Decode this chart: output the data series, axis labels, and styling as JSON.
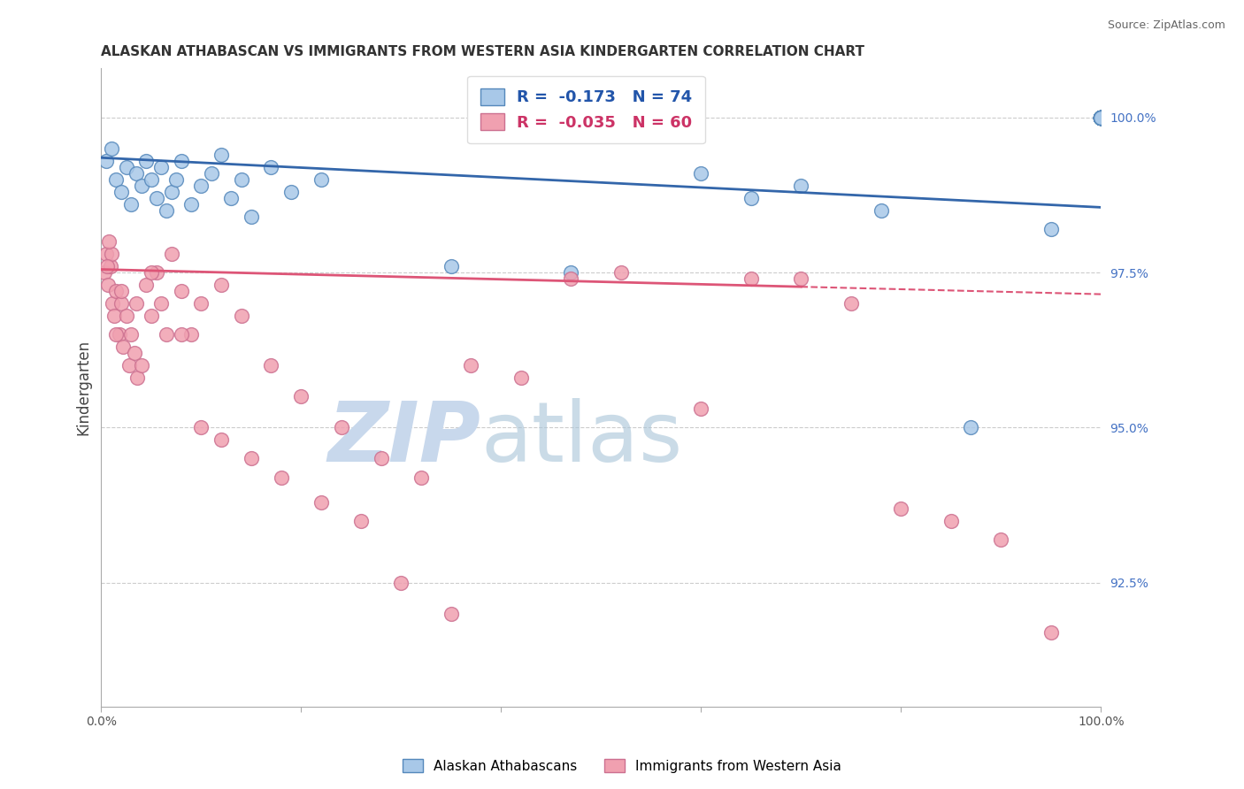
{
  "title": "ALASKAN ATHABASCAN VS IMMIGRANTS FROM WESTERN ASIA KINDERGARTEN CORRELATION CHART",
  "source": "Source: ZipAtlas.com",
  "ylabel": "Kindergarten",
  "xmin": 0.0,
  "xmax": 100.0,
  "ymin": 90.5,
  "ymax": 100.8,
  "blue_R": -0.173,
  "blue_N": 74,
  "pink_R": -0.035,
  "pink_N": 60,
  "legend_label_blue": "Alaskan Athabascans",
  "legend_label_pink": "Immigrants from Western Asia",
  "blue_dot_color": "#a8c8e8",
  "blue_dot_edge": "#5588bb",
  "pink_dot_color": "#f0a0b0",
  "pink_dot_edge": "#cc7090",
  "blue_line_color": "#3366aa",
  "pink_line_color": "#dd5577",
  "ytick_vals": [
    92.5,
    95.0,
    97.5,
    100.0
  ],
  "ytick_labels": [
    "92.5%",
    "95.0%",
    "97.5%",
    "100.0%"
  ],
  "blue_line_y0": 99.35,
  "blue_line_y1": 98.55,
  "pink_line_y0": 97.55,
  "pink_line_y1": 97.15,
  "pink_solid_end": 70.0,
  "blue_dots_x": [
    0.5,
    1.0,
    1.5,
    2.0,
    2.5,
    3.0,
    3.5,
    4.0,
    4.5,
    5.0,
    5.5,
    6.0,
    6.5,
    7.0,
    7.5,
    8.0,
    9.0,
    10.0,
    11.0,
    12.0,
    13.0,
    14.0,
    15.0,
    17.0,
    19.0,
    22.0,
    35.0,
    47.0,
    60.0,
    65.0,
    70.0,
    78.0,
    87.0,
    95.0,
    100.0,
    100.0,
    100.0,
    100.0,
    100.0,
    100.0,
    100.0,
    100.0,
    100.0,
    100.0,
    100.0,
    100.0,
    100.0,
    100.0,
    100.0,
    100.0,
    100.0,
    100.0,
    100.0,
    100.0,
    100.0,
    100.0,
    100.0,
    100.0,
    100.0,
    100.0,
    100.0,
    100.0,
    100.0,
    100.0,
    100.0,
    100.0,
    100.0,
    100.0,
    100.0,
    100.0,
    100.0,
    100.0,
    100.0,
    100.0
  ],
  "blue_dots_y": [
    99.3,
    99.5,
    99.0,
    98.8,
    99.2,
    98.6,
    99.1,
    98.9,
    99.3,
    99.0,
    98.7,
    99.2,
    98.5,
    98.8,
    99.0,
    99.3,
    98.6,
    98.9,
    99.1,
    99.4,
    98.7,
    99.0,
    98.4,
    99.2,
    98.8,
    99.0,
    97.6,
    97.5,
    99.1,
    98.7,
    98.9,
    98.5,
    95.0,
    98.2,
    100.0,
    100.0,
    100.0,
    100.0,
    100.0,
    100.0,
    100.0,
    100.0,
    100.0,
    100.0,
    100.0,
    100.0,
    100.0,
    100.0,
    100.0,
    100.0,
    100.0,
    100.0,
    100.0,
    100.0,
    100.0,
    100.0,
    100.0,
    100.0,
    100.0,
    100.0,
    100.0,
    100.0,
    100.0,
    100.0,
    100.0,
    100.0,
    100.0,
    100.0,
    100.0,
    100.0,
    100.0,
    100.0,
    100.0,
    100.0
  ],
  "pink_dots_x": [
    0.3,
    0.5,
    0.7,
    0.9,
    1.1,
    1.3,
    1.5,
    1.8,
    2.0,
    2.2,
    2.5,
    2.8,
    3.0,
    3.3,
    3.6,
    4.0,
    4.5,
    5.0,
    5.5,
    6.0,
    6.5,
    7.0,
    8.0,
    9.0,
    10.0,
    12.0,
    14.0,
    17.0,
    20.0,
    24.0,
    28.0,
    32.0,
    37.0,
    42.0,
    47.0,
    52.0,
    60.0,
    65.0,
    70.0,
    75.0,
    80.0,
    85.0,
    90.0,
    95.0,
    10.0,
    12.0,
    15.0,
    18.0,
    22.0,
    26.0,
    30.0,
    35.0,
    8.0,
    5.0,
    3.5,
    2.0,
    1.5,
    1.0,
    0.8,
    0.6
  ],
  "pink_dots_y": [
    97.5,
    97.8,
    97.3,
    97.6,
    97.0,
    96.8,
    97.2,
    96.5,
    97.0,
    96.3,
    96.8,
    96.0,
    96.5,
    96.2,
    95.8,
    96.0,
    97.3,
    96.8,
    97.5,
    97.0,
    96.5,
    97.8,
    97.2,
    96.5,
    97.0,
    97.3,
    96.8,
    96.0,
    95.5,
    95.0,
    94.5,
    94.2,
    96.0,
    95.8,
    97.4,
    97.5,
    95.3,
    97.4,
    97.4,
    97.0,
    93.7,
    93.5,
    93.2,
    91.7,
    95.0,
    94.8,
    94.5,
    94.2,
    93.8,
    93.5,
    92.5,
    92.0,
    96.5,
    97.5,
    97.0,
    97.2,
    96.5,
    97.8,
    98.0,
    97.6
  ]
}
